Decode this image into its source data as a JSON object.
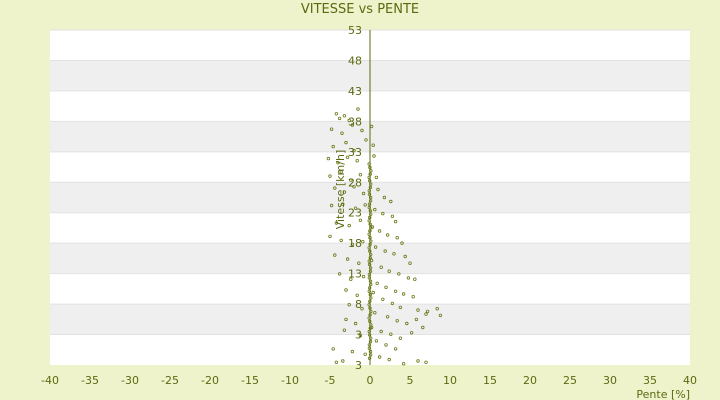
{
  "chart_data": {
    "type": "scatter",
    "title": "VITESSE vs PENTE",
    "xlabel": "Pente [%]",
    "ylabel": "Vitesse [km/h]",
    "xlim": [
      -40,
      40
    ],
    "ylim": [
      3,
      53
    ],
    "x_ticks": [
      "-40",
      "-35",
      "-30",
      "-25",
      "-20",
      "-15",
      "-10",
      "-5",
      "0",
      "5",
      "10",
      "15",
      "20",
      "25",
      "30",
      "35",
      "40"
    ],
    "y_ticks": [
      "53",
      "48",
      "43",
      "38",
      "33",
      "28",
      "23",
      "18",
      "13",
      "8",
      "3",
      "3"
    ],
    "grid": "horizontal bands",
    "series": [
      {
        "marker_color": "#6b7a1a",
        "points": [
          [
            -4.2,
            40.5
          ],
          [
            -3.8,
            39.8
          ],
          [
            -3.2,
            40.2
          ],
          [
            -2.6,
            39.5
          ],
          [
            -1.5,
            41.2
          ],
          [
            -4.8,
            38.2
          ],
          [
            -3.5,
            37.6
          ],
          [
            -2.2,
            38.8
          ],
          [
            -1.0,
            38.0
          ],
          [
            0.2,
            38.6
          ],
          [
            -4.6,
            35.6
          ],
          [
            -3.0,
            36.2
          ],
          [
            -2.0,
            35.0
          ],
          [
            -0.5,
            36.6
          ],
          [
            0.4,
            35.8
          ],
          [
            -5.2,
            33.8
          ],
          [
            -4.0,
            33.2
          ],
          [
            -2.8,
            34.0
          ],
          [
            -1.6,
            33.5
          ],
          [
            0.5,
            34.2
          ],
          [
            -5.0,
            31.2
          ],
          [
            -3.6,
            31.8
          ],
          [
            -2.4,
            30.6
          ],
          [
            -1.2,
            31.4
          ],
          [
            0.8,
            31.0
          ],
          [
            -4.4,
            29.4
          ],
          [
            -3.2,
            28.8
          ],
          [
            -2.0,
            29.6
          ],
          [
            -0.8,
            28.6
          ],
          [
            1.0,
            29.2
          ],
          [
            1.8,
            28.0
          ],
          [
            2.6,
            27.4
          ],
          [
            -4.8,
            26.8
          ],
          [
            -3.4,
            27.0
          ],
          [
            -1.8,
            26.4
          ],
          [
            -0.6,
            26.9
          ],
          [
            0.6,
            26.2
          ],
          [
            1.6,
            25.6
          ],
          [
            2.8,
            25.2
          ],
          [
            3.2,
            24.4
          ],
          [
            -4.2,
            24.2
          ],
          [
            -2.6,
            23.8
          ],
          [
            -1.2,
            24.6
          ],
          [
            0.3,
            23.6
          ],
          [
            1.2,
            23.0
          ],
          [
            2.2,
            22.4
          ],
          [
            3.4,
            22.0
          ],
          [
            4.0,
            21.2
          ],
          [
            -5.0,
            22.2
          ],
          [
            -3.6,
            21.6
          ],
          [
            -2.2,
            21.0
          ],
          [
            -0.9,
            21.4
          ],
          [
            0.7,
            20.6
          ],
          [
            1.9,
            20.0
          ],
          [
            3.0,
            19.6
          ],
          [
            4.4,
            19.2
          ],
          [
            5.0,
            18.2
          ],
          [
            -4.4,
            19.4
          ],
          [
            -2.8,
            18.8
          ],
          [
            -1.4,
            18.2
          ],
          [
            0.2,
            18.6
          ],
          [
            1.4,
            17.6
          ],
          [
            2.4,
            17.0
          ],
          [
            3.6,
            16.6
          ],
          [
            4.8,
            16.0
          ],
          [
            5.6,
            15.8
          ],
          [
            -3.8,
            16.6
          ],
          [
            -2.4,
            15.8
          ],
          [
            -0.8,
            16.2
          ],
          [
            0.9,
            15.2
          ],
          [
            2.0,
            14.6
          ],
          [
            3.2,
            14.0
          ],
          [
            4.2,
            13.6
          ],
          [
            5.4,
            13.2
          ],
          [
            -3.0,
            14.2
          ],
          [
            -1.6,
            13.4
          ],
          [
            0.4,
            13.8
          ],
          [
            1.6,
            12.8
          ],
          [
            2.8,
            12.2
          ],
          [
            3.8,
            11.6
          ],
          [
            6.0,
            11.2
          ],
          [
            7.2,
            11.0
          ],
          [
            8.4,
            11.4
          ],
          [
            8.8,
            10.4
          ],
          [
            -2.6,
            12.0
          ],
          [
            -1.0,
            11.4
          ],
          [
            0.6,
            10.8
          ],
          [
            2.2,
            10.2
          ],
          [
            3.4,
            9.6
          ],
          [
            4.6,
            9.2
          ],
          [
            5.8,
            9.8
          ],
          [
            7.0,
            10.6
          ],
          [
            -3.0,
            9.8
          ],
          [
            -1.8,
            9.2
          ],
          [
            0.2,
            8.6
          ],
          [
            1.4,
            8.0
          ],
          [
            2.6,
            7.6
          ],
          [
            3.8,
            7.0
          ],
          [
            5.2,
            7.8
          ],
          [
            6.6,
            8.6
          ],
          [
            -3.2,
            8.2
          ],
          [
            -1.2,
            7.4
          ],
          [
            0.8,
            6.6
          ],
          [
            2.0,
            6.0
          ],
          [
            3.2,
            5.4
          ],
          [
            -4.6,
            5.4
          ],
          [
            -2.2,
            5.0
          ],
          [
            -0.6,
            4.6
          ],
          [
            1.2,
            4.2
          ],
          [
            2.4,
            3.8
          ],
          [
            4.2,
            3.2
          ],
          [
            6.0,
            3.6
          ],
          [
            7.0,
            3.4
          ],
          [
            -3.4,
            3.6
          ],
          [
            -4.2,
            3.4
          ]
        ]
      }
    ]
  }
}
